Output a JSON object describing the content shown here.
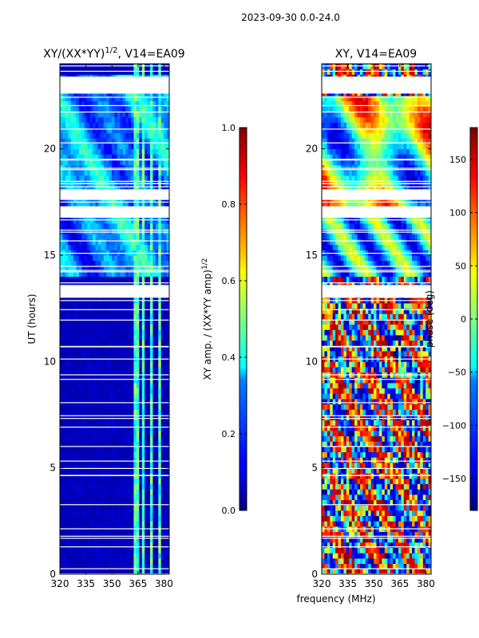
{
  "figure": {
    "suptitle": "2023-09-30 0.0-24.0",
    "shared_xlabel": "frequency (MHz)"
  },
  "chart_data": [
    {
      "type": "heatmap",
      "title_main": "XY/(XX*YY)",
      "title_sup": "1/2",
      "title_tail": ", V14=EA09",
      "xlabel": "frequency (MHz)",
      "ylabel": "UT (hours)",
      "xlim": [
        320,
        383
      ],
      "ylim": [
        0,
        24
      ],
      "xticks": [
        320,
        335,
        350,
        365,
        380
      ],
      "xtick_labels": [
        "320",
        "335",
        "350",
        "365",
        "380"
      ],
      "yticks": [
        0,
        5,
        10,
        15,
        20
      ],
      "ytick_labels": [
        "0",
        "5",
        "10",
        "15",
        "20"
      ],
      "quantity": "normalized amplitude",
      "colormap": "jet",
      "colorbar": {
        "label_main": "XY amp. / (XX*YY amp)",
        "label_sup": "1/2",
        "range": [
          0.0,
          1.0
        ],
        "ticks": [
          0.0,
          0.2,
          0.4,
          0.6,
          0.8,
          1.0
        ],
        "tick_labels": [
          "0.0",
          "0.2",
          "0.4",
          "0.6",
          "0.8",
          "1.0"
        ]
      },
      "blank_intervals_hours": [
        [
          22.6,
          23.4
        ],
        [
          17.6,
          18.1
        ],
        [
          16.8,
          17.3
        ],
        [
          13.0,
          13.6
        ]
      ],
      "bright_channels_mhz": [
        [
          362,
          365
        ],
        [
          367,
          369
        ],
        [
          372,
          374
        ],
        [
          377,
          379
        ]
      ]
    },
    {
      "type": "heatmap",
      "title": "XY, V14=EA09",
      "xlabel": "frequency (MHz)",
      "ylabel": "",
      "xlim": [
        320,
        383
      ],
      "ylim": [
        0,
        24
      ],
      "xticks": [
        320,
        335,
        350,
        365,
        380
      ],
      "xtick_labels": [
        "320",
        "335",
        "350",
        "365",
        "380"
      ],
      "yticks": [
        0,
        5,
        10,
        15,
        20
      ],
      "ytick_labels": [
        "0",
        "5",
        "10",
        "15",
        "20"
      ],
      "quantity": "phase (deg)",
      "colormap": "jet",
      "colorbar": {
        "label": "phase (deg)",
        "range": [
          -180,
          180
        ],
        "ticks": [
          -150,
          -100,
          -50,
          0,
          50,
          100,
          150
        ],
        "tick_labels": [
          "−150",
          "−100",
          "−50",
          "0",
          "50",
          "100",
          "150"
        ]
      },
      "blank_intervals_hours": [
        [
          22.6,
          23.4
        ],
        [
          17.6,
          18.1
        ],
        [
          16.8,
          17.3
        ],
        [
          13.0,
          13.6
        ]
      ]
    }
  ]
}
